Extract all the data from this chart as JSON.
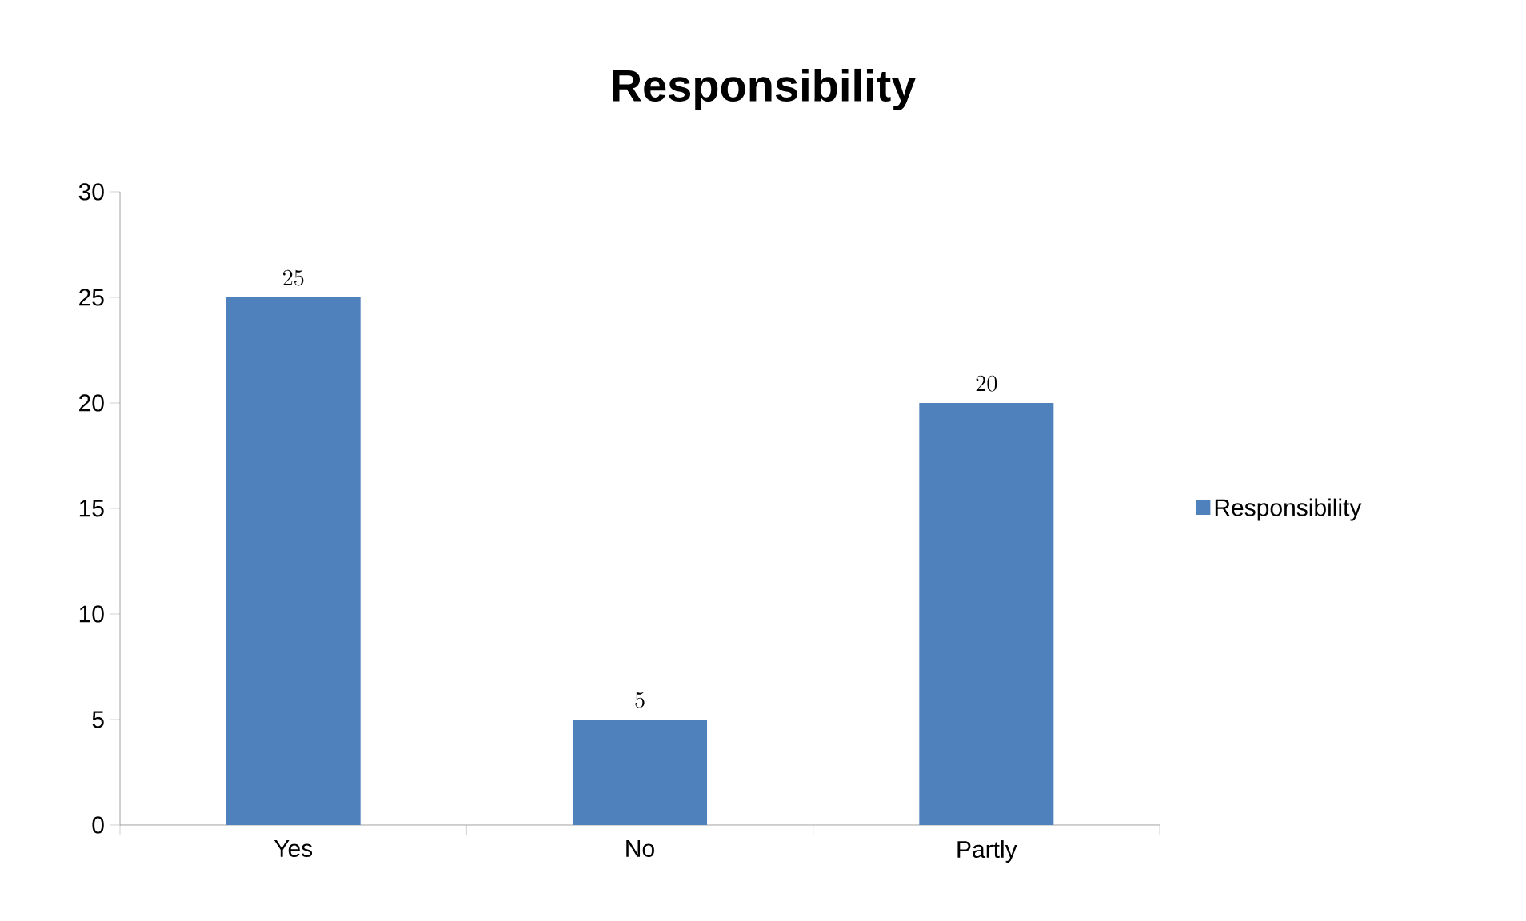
{
  "chart_data": {
    "type": "bar",
    "title": "Responsibility",
    "categories": [
      "Yes",
      "No",
      "Partly"
    ],
    "series": [
      {
        "name": "Responsibility",
        "color": "#4f81bd",
        "values": [
          25,
          5,
          20
        ]
      }
    ],
    "ylim": [
      0,
      30
    ],
    "yticks": [
      0,
      5,
      10,
      15,
      20,
      25,
      30
    ],
    "data_labels": true,
    "legend": "right",
    "grid": false
  }
}
